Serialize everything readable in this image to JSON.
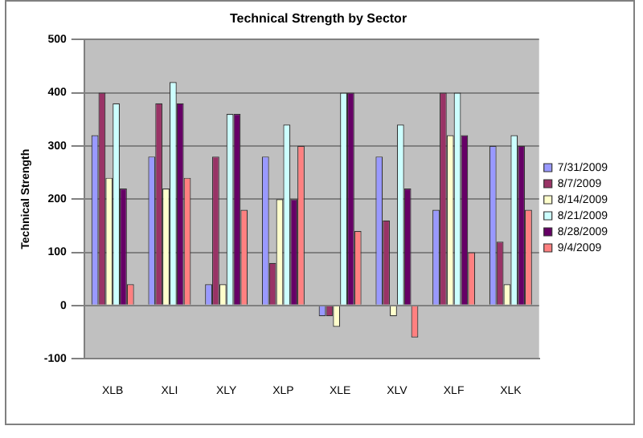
{
  "chart_data": {
    "type": "bar",
    "title": "Technical Strength by Sector",
    "ylabel": "Technical Strength",
    "categories": [
      "XLB",
      "XLI",
      "XLY",
      "XLP",
      "XLE",
      "XLV",
      "XLF",
      "XLK"
    ],
    "series": [
      {
        "name": "7/31/2009",
        "color": "#9999ff",
        "values": [
          320,
          280,
          40,
          280,
          -20,
          280,
          180,
          300
        ]
      },
      {
        "name": "8/7/2009",
        "color": "#993366",
        "values": [
          400,
          380,
          280,
          80,
          -20,
          160,
          400,
          120
        ]
      },
      {
        "name": "8/14/2009",
        "color": "#ffffcc",
        "values": [
          240,
          220,
          40,
          200,
          -40,
          -20,
          320,
          40
        ]
      },
      {
        "name": "8/21/2009",
        "color": "#ccffff",
        "values": [
          380,
          420,
          360,
          340,
          400,
          340,
          400,
          320
        ]
      },
      {
        "name": "8/28/2009",
        "color": "#660066",
        "values": [
          220,
          380,
          360,
          200,
          400,
          220,
          320,
          300
        ]
      },
      {
        "name": "9/4/2009",
        "color": "#ff8080",
        "values": [
          40,
          240,
          180,
          300,
          140,
          -60,
          100,
          180
        ]
      }
    ],
    "ylim": [
      -100,
      500
    ],
    "yticks": [
      -100,
      0,
      100,
      200,
      300,
      400,
      500
    ],
    "grid": "y",
    "legend": "right"
  }
}
